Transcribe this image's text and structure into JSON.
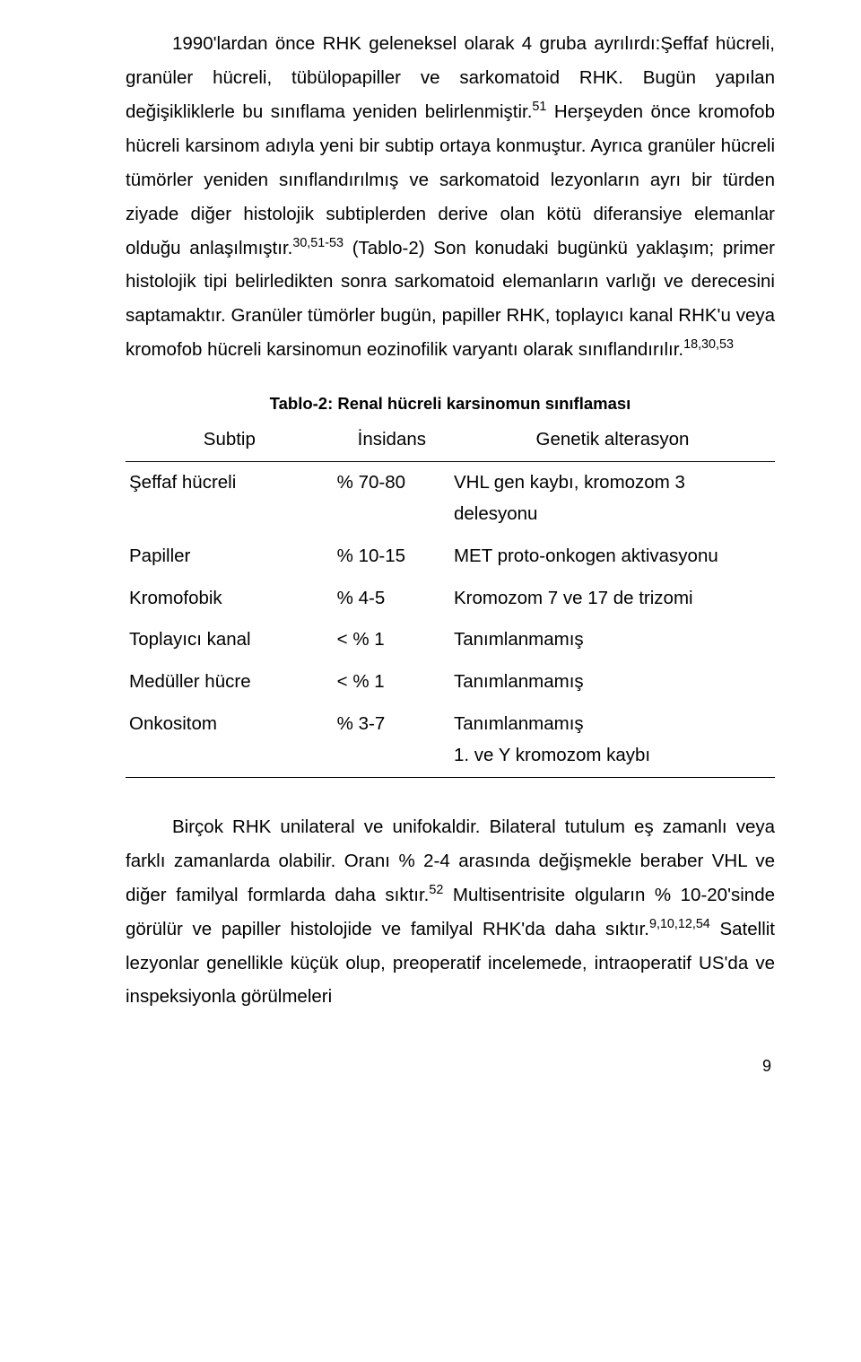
{
  "paragraph1": {
    "s1": "1990'lardan önce RHK geleneksel olarak 4 gruba ayrılırdı:Şeffaf hücreli, granüler hücreli, tübülopapiller ve sarkomatoid RHK. Bugün yapılan değişikliklerle bu sınıflama yeniden belirlenmiştir.",
    "ref1": "51",
    "s2": " Herşeyden önce kromofob hücreli karsinom adıyla yeni bir subtip ortaya konmuştur. Ayrıca granüler hücreli tümörler yeniden sınıflandırılmış ve sarkomatoid lezyonların ayrı bir türden ziyade diğer histolojik subtiplerden derive olan kötü diferansiye elemanlar olduğu anlaşılmıştır.",
    "ref2": "30,51-53",
    "s3": " (Tablo-2) Son konudaki bugünkü yaklaşım; primer histolojik tipi belirledikten sonra sarkomatoid elemanların varlığı ve derecesini saptamaktır. Granüler tümörler bugün, papiller RHK, toplayıcı kanal RHK'u veya kromofob hücreli karsinomun eozinofilik varyantı olarak sınıflandırılır.",
    "ref3": "18,30,53"
  },
  "table": {
    "title": "Tablo-2: Renal hücreli karsinomun sınıflaması",
    "headers": {
      "c1": "Subtip",
      "c2": "İnsidans",
      "c3": "Genetik alterasyon"
    },
    "rows": [
      {
        "c1": "Şeffaf hücreli",
        "c2": "% 70-80",
        "c3": "VHL gen kaybı, kromozom 3 delesyonu"
      },
      {
        "c1": "Papiller",
        "c2": "% 10-15",
        "c3": "MET proto-onkogen aktivasyonu"
      },
      {
        "c1": "Kromofobik",
        "c2": "% 4-5",
        "c3": "Kromozom 7 ve 17 de trizomi"
      },
      {
        "c1": "Toplayıcı kanal",
        "c2": "< % 1",
        "c3": "Tanımlanmamış"
      },
      {
        "c1": "Medüller hücre",
        "c2": "< % 1",
        "c3": "Tanımlanmamış"
      },
      {
        "c1": "Onkositom",
        "c2": "% 3-7",
        "c3": "Tanımlanmamış\n1. ve Y kromozom kaybı"
      }
    ]
  },
  "paragraph2": {
    "s1": "Birçok RHK unilateral ve unifokaldir. Bilateral tutulum eş zamanlı veya farklı zamanlarda olabilir. Oranı % 2-4 arasında değişmekle beraber VHL ve diğer familyal formlarda daha sıktır.",
    "ref1": "52",
    "s2": " Multisentrisite olguların % 10-20'sinde görülür ve papiller histolojide ve  familyal RHK'da daha sıktır.",
    "ref2": "9,10,12,54",
    "s3": " Satellit lezyonlar genellikle küçük olup, preoperatif incelemede, intraoperatif US'da ve inspeksiyonla görülmeleri"
  },
  "pageNumber": "9"
}
